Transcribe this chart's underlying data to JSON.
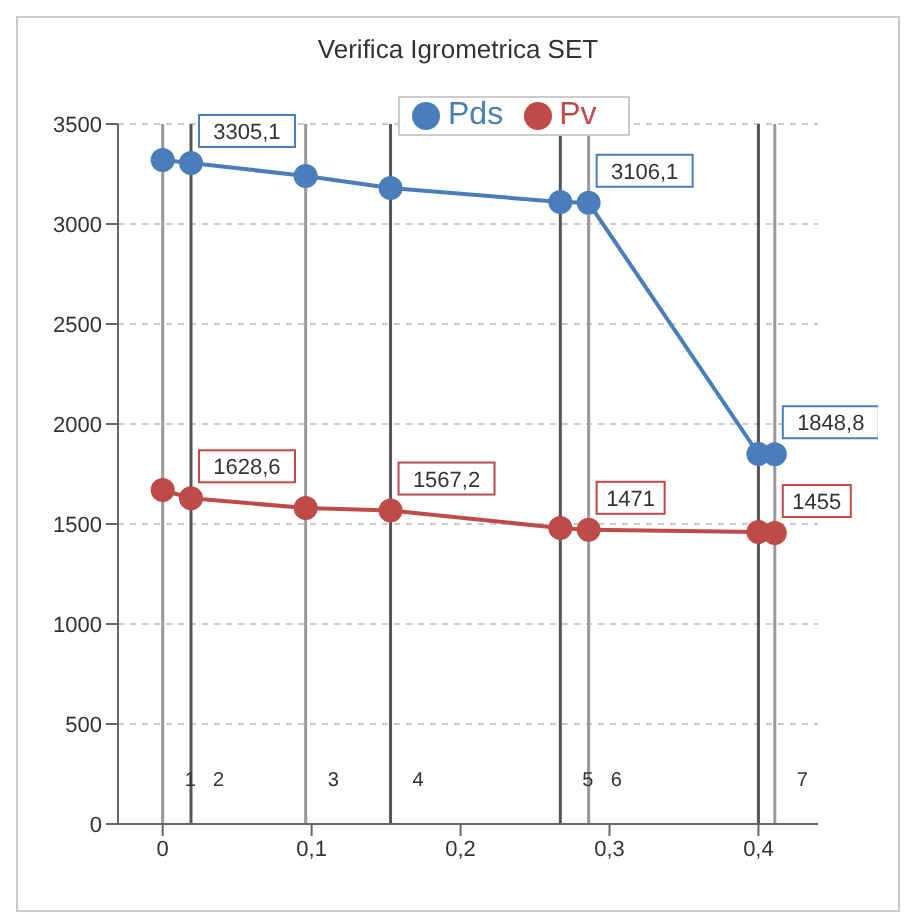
{
  "chart_data": {
    "type": "line",
    "title": "Verifica Igrometrica SET",
    "x": [
      0,
      0.019,
      0.096,
      0.153,
      0.267,
      0.286,
      0.4,
      0.411
    ],
    "series": [
      {
        "name": "Pds",
        "color": "#4a7ebb",
        "values": [
          3320,
          3305.1,
          3240,
          3180,
          3110,
          3106.1,
          1850,
          1848.8
        ],
        "value_labels": [
          null,
          "3305,1",
          null,
          null,
          null,
          "3106,1",
          null,
          "1848,8"
        ]
      },
      {
        "name": "Pv",
        "color": "#be4b48",
        "values": [
          1670,
          1628.6,
          1580,
          1567.2,
          1480,
          1471,
          1460,
          1455
        ],
        "value_labels": [
          null,
          "1628,6",
          null,
          "1567,2",
          null,
          "1471",
          null,
          "1455"
        ]
      }
    ],
    "xlim": [
      -0.03,
      0.44
    ],
    "xticks": [
      0,
      {
        "value": 0.1,
        "label": "0,1"
      },
      {
        "value": 0.2,
        "label": "0,2"
      },
      {
        "value": 0.3,
        "label": "0,3"
      },
      {
        "value": 0.4,
        "label": "0,4"
      }
    ],
    "ylim": [
      0,
      3500
    ],
    "yticks": [
      0,
      500,
      1000,
      1500,
      2000,
      2500,
      3000,
      3500
    ],
    "grid": "y",
    "legend": "top",
    "marker": "circle",
    "line_style": "solid",
    "ref_lines": [
      {
        "axis": "x",
        "value": 0,
        "color": "#999999"
      },
      {
        "axis": "x",
        "value": 0.019,
        "color": "#555555"
      },
      {
        "axis": "x",
        "value": 0.096,
        "color": "#999999"
      },
      {
        "axis": "x",
        "value": 0.153,
        "color": "#555555"
      },
      {
        "axis": "x",
        "value": 0.267,
        "color": "#555555"
      },
      {
        "axis": "x",
        "value": 0.286,
        "color": "#999999"
      },
      {
        "axis": "x",
        "value": 0.4,
        "color": "#555555"
      },
      {
        "axis": "x",
        "value": 0.411,
        "color": "#999999"
      }
    ],
    "annotations": [
      {
        "text": "1",
        "x": 0,
        "y": 0
      },
      {
        "text": "2",
        "x": 0.019,
        "y": 0
      },
      {
        "text": "3",
        "x": 0.096,
        "y": 0
      },
      {
        "text": "4",
        "x": 0.153,
        "y": 0
      },
      {
        "text": "5",
        "x": 0.267,
        "y": 0
      },
      {
        "text": "6",
        "x": 0.286,
        "y": 0
      },
      {
        "text": "7",
        "x": 0.411,
        "y": 0
      }
    ]
  }
}
